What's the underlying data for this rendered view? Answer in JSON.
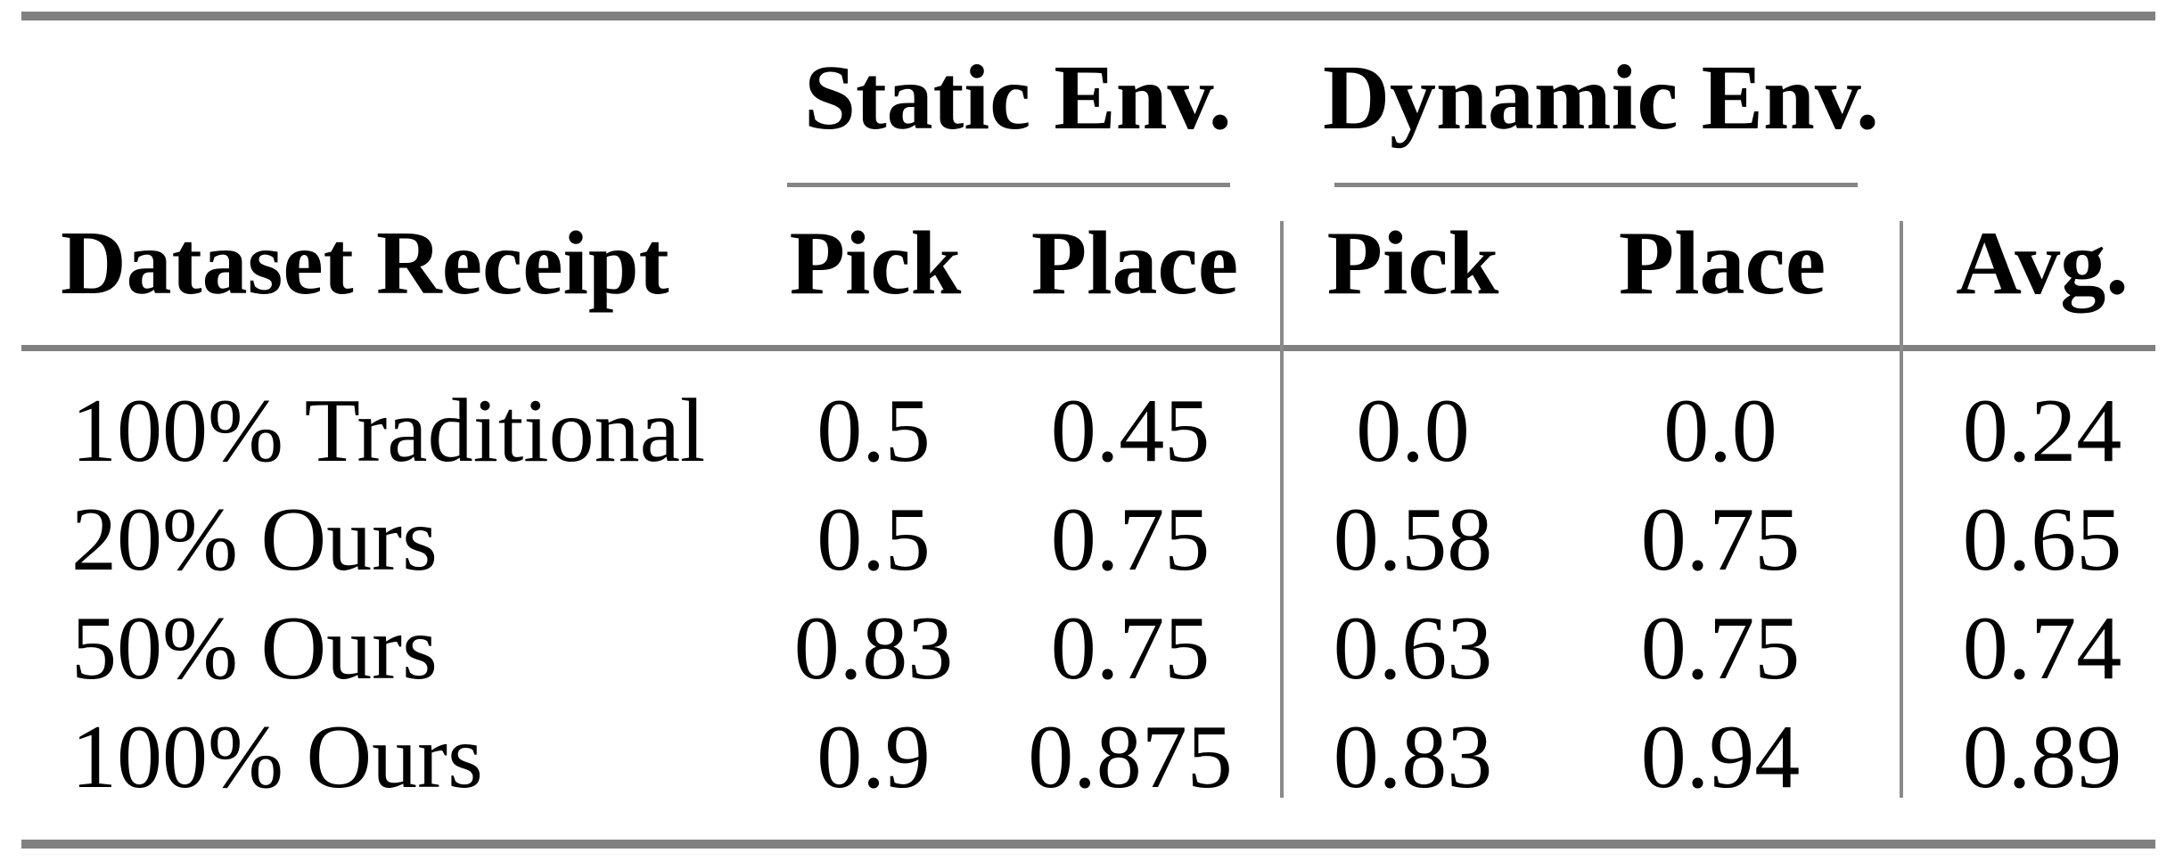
{
  "page": {
    "background_color": "#ffffff",
    "text_color": "#000000",
    "rule_color": "#808080"
  },
  "table": {
    "groups": [
      {
        "label": "Static Env."
      },
      {
        "label": "Dynamic Env."
      }
    ],
    "columns": [
      "Dataset Receipt",
      "Pick",
      "Place",
      "Pick",
      "Place",
      "Avg."
    ],
    "rows": [
      {
        "label": "100% Traditional",
        "values": [
          "0.5",
          "0.45",
          "0.0",
          "0.0",
          "0.24"
        ]
      },
      {
        "label": "20% Ours",
        "values": [
          "0.5",
          "0.75",
          "0.58",
          "0.75",
          "0.65"
        ]
      },
      {
        "label": "50% Ours",
        "values": [
          "0.83",
          "0.75",
          "0.63",
          "0.75",
          "0.74"
        ]
      },
      {
        "label": "100% Ours",
        "values": [
          "0.9",
          "0.875",
          "0.83",
          "0.94",
          "0.89"
        ]
      }
    ]
  },
  "chart_data": {
    "type": "table",
    "title": "",
    "column_groups": [
      {
        "label": "Static Env.",
        "spans": [
          "Pick",
          "Place"
        ]
      },
      {
        "label": "Dynamic Env.",
        "spans": [
          "Pick",
          "Place"
        ]
      }
    ],
    "columns": [
      "Dataset Receipt",
      "Static Env. Pick",
      "Static Env. Place",
      "Dynamic Env. Pick",
      "Dynamic Env. Place",
      "Avg."
    ],
    "rows": [
      [
        "100% Traditional",
        "0.5",
        "0.45",
        "0.0",
        "0.0",
        "0.24"
      ],
      [
        "20% Ours",
        "0.5",
        "0.75",
        "0.58",
        "0.75",
        "0.65"
      ],
      [
        "50% Ours",
        "0.83",
        "0.75",
        "0.63",
        "0.75",
        "0.74"
      ],
      [
        "100% Ours",
        "0.9",
        "0.875",
        "0.83",
        "0.94",
        "0.89"
      ]
    ]
  }
}
